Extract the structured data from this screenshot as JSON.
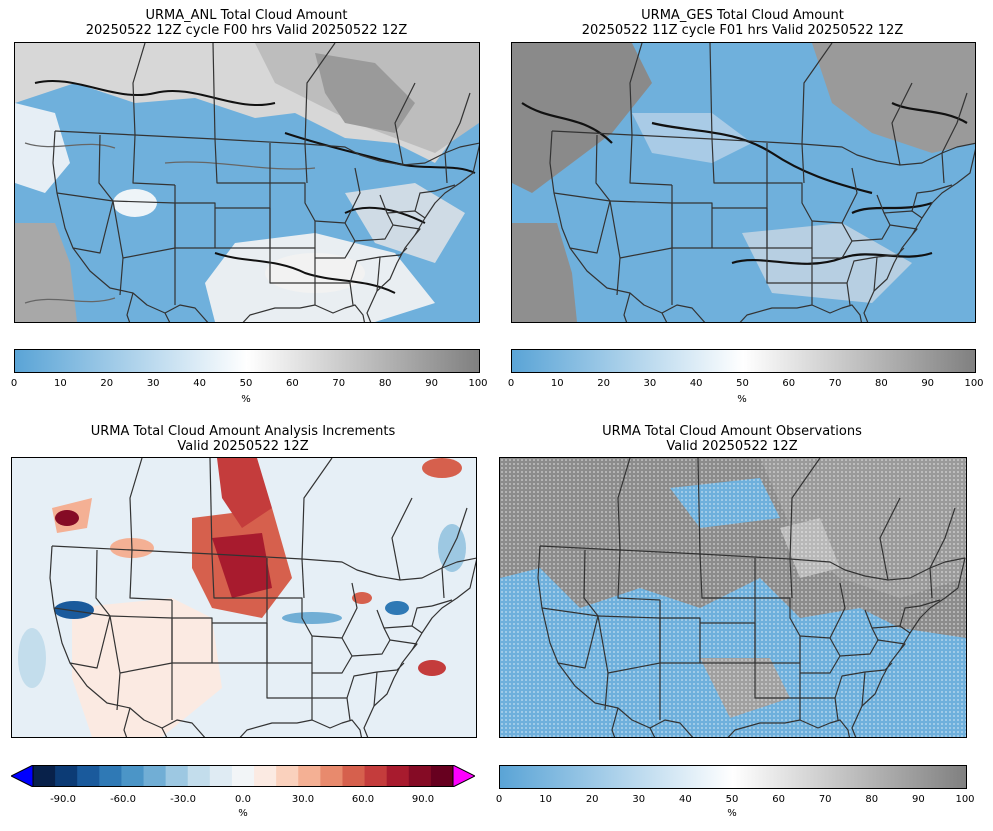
{
  "panels": [
    {
      "title_line1": "URMA_ANL Total Cloud Amount",
      "title_line2": "20250522 12Z cycle F00 hrs Valid 20250522 12Z"
    },
    {
      "title_line1": "URMA_GES Total Cloud Amount",
      "title_line2": "20250522 11Z cycle F01 hrs Valid 20250522 12Z"
    },
    {
      "title_line1": "URMA Total Cloud Amount Analysis Increments",
      "title_line2": "Valid 20250522 12Z"
    },
    {
      "title_line1": "URMA Total Cloud Amount Observations",
      "title_line2": "Valid 20250522 12Z"
    }
  ],
  "colorbars": {
    "cloud": {
      "ticks": [
        "0",
        "10",
        "20",
        "30",
        "40",
        "50",
        "60",
        "70",
        "80",
        "90",
        "100"
      ],
      "unit": "%",
      "colors": [
        "#5aa4d6",
        "#ffffff",
        "#808080"
      ]
    },
    "increment": {
      "ticks": [
        "-90.0",
        "-60.0",
        "-30.0",
        "0.0",
        "30.0",
        "60.0",
        "90.0"
      ],
      "unit": "%",
      "under_color": "#0000ff",
      "over_color": "#ff00ff",
      "colors": [
        "#08214a",
        "#0c3b75",
        "#1a5a9c",
        "#2f79b5",
        "#4b95c7",
        "#71aed5",
        "#9dc8e2",
        "#c3ddec",
        "#dfebf3",
        "#f2f5f7",
        "#fbeae2",
        "#fad1bd",
        "#f4b094",
        "#e88a6d",
        "#d6604d",
        "#c43c3c",
        "#a81b2e",
        "#850b25",
        "#67001f"
      ]
    }
  }
}
